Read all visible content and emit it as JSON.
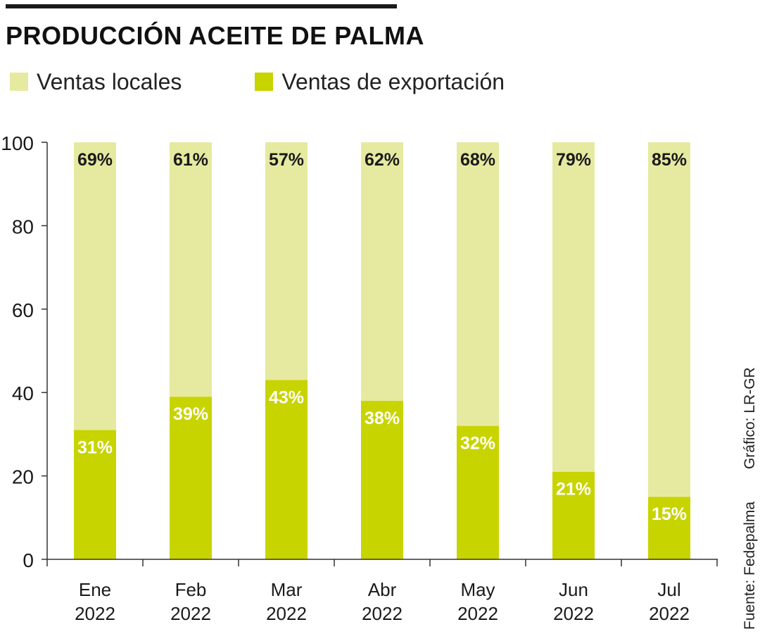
{
  "title": "PRODUCCIÓN ACEITE DE PALMA",
  "colors": {
    "local": "#e6eaa0",
    "export": "#c8d400",
    "axis": "#333333",
    "text": "#1a1a1a",
    "label_light": "#ffffff"
  },
  "legend": [
    {
      "label": "Ventas locales",
      "color": "#e6eaa0"
    },
    {
      "label": "Ventas de exportación",
      "color": "#c8d400"
    }
  ],
  "credit": "Gráfico: LR-GR",
  "source": "Fuente: Fedepalma",
  "chart_data": {
    "type": "bar",
    "stacked": true,
    "categories": [
      "Ene 2022",
      "Feb 2022",
      "Mar 2022",
      "Abr 2022",
      "May 2022",
      "Jun 2022",
      "Jul 2022"
    ],
    "category_lines": [
      [
        "Ene",
        "2022"
      ],
      [
        "Feb",
        "2022"
      ],
      [
        "Mar",
        "2022"
      ],
      [
        "Abr",
        "2022"
      ],
      [
        "May",
        "2022"
      ],
      [
        "Jun",
        "2022"
      ],
      [
        "Jul",
        "2022"
      ]
    ],
    "series": [
      {
        "name": "Ventas de exportación",
        "values": [
          31,
          39,
          43,
          38,
          32,
          21,
          15
        ],
        "labels": [
          "31%",
          "39%",
          "43%",
          "38%",
          "32%",
          "21%",
          "15%"
        ]
      },
      {
        "name": "Ventas locales",
        "values": [
          69,
          61,
          57,
          62,
          68,
          79,
          85
        ],
        "labels": [
          "69%",
          "61%",
          "57%",
          "62%",
          "68%",
          "79%",
          "85%"
        ]
      }
    ],
    "ylim": [
      0,
      100
    ],
    "yticks": [
      0,
      20,
      40,
      60,
      80,
      100
    ],
    "ytick_labels": [
      "0",
      "20",
      "40",
      "60",
      "80",
      "100"
    ],
    "grid": false,
    "legend_position": "top-left"
  }
}
